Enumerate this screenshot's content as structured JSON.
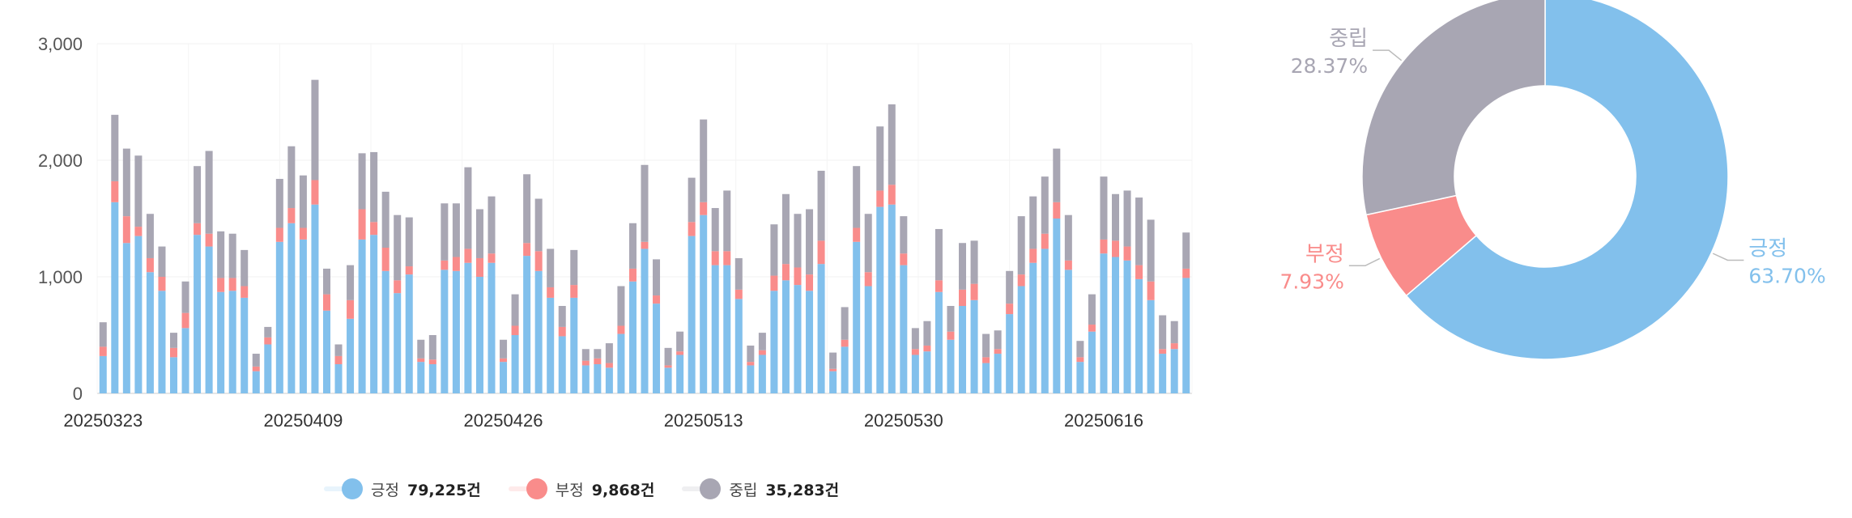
{
  "chart_data": [
    {
      "type": "bar",
      "stacked": true,
      "x_ticks": [
        "20250323",
        "20250409",
        "20250426",
        "20250513",
        "20250530",
        "20250616"
      ],
      "y_ticks": [
        "0",
        "1,000",
        "2,000",
        "3,000"
      ],
      "ylim": [
        0,
        3000
      ],
      "grid": true,
      "series": [
        {
          "name": "긍정",
          "color": "#82c0ec",
          "values": [
            320,
            1640,
            1290,
            1350,
            1040,
            880,
            310,
            560,
            1360,
            1260,
            870,
            880,
            820,
            190,
            420,
            1300,
            1460,
            1320,
            1620,
            710,
            250,
            640,
            1320,
            1360,
            1050,
            860,
            1020,
            270,
            250,
            1060,
            1050,
            1120,
            1000,
            1120,
            270,
            500,
            1180,
            1050,
            820,
            490,
            820,
            240,
            250,
            220,
            510,
            960,
            1240,
            770,
            220,
            330,
            1350,
            1530,
            1100,
            1100,
            810,
            240,
            330,
            880,
            970,
            930,
            880,
            1110,
            190,
            400,
            1300,
            920,
            1600,
            1620,
            1100,
            330,
            360,
            870,
            460,
            750,
            800,
            260,
            340,
            680,
            920,
            1120,
            1240,
            1500,
            1060,
            270,
            530,
            1200,
            1170,
            1140,
            980,
            800,
            340,
            380,
            990
          ]
        },
        {
          "name": "부정",
          "color": "#f98c8b",
          "values": [
            80,
            180,
            230,
            80,
            120,
            120,
            80,
            130,
            100,
            110,
            120,
            110,
            100,
            40,
            60,
            120,
            130,
            100,
            210,
            140,
            70,
            160,
            260,
            110,
            200,
            110,
            70,
            30,
            40,
            80,
            120,
            120,
            160,
            80,
            30,
            80,
            110,
            170,
            90,
            80,
            110,
            40,
            50,
            40,
            70,
            110,
            60,
            70,
            20,
            30,
            120,
            110,
            120,
            120,
            80,
            30,
            40,
            130,
            140,
            150,
            140,
            200,
            20,
            60,
            120,
            120,
            140,
            170,
            100,
            50,
            50,
            100,
            70,
            140,
            140,
            50,
            40,
            90,
            100,
            120,
            130,
            140,
            80,
            40,
            60,
            120,
            140,
            120,
            120,
            160,
            40,
            50,
            80
          ]
        },
        {
          "name": "중립",
          "color": "#a8a6b3",
          "values": [
            210,
            570,
            580,
            610,
            380,
            260,
            130,
            270,
            490,
            710,
            400,
            380,
            310,
            110,
            90,
            420,
            530,
            450,
            860,
            220,
            100,
            300,
            480,
            600,
            480,
            560,
            420,
            160,
            210,
            490,
            460,
            700,
            420,
            490,
            160,
            270,
            590,
            450,
            330,
            180,
            300,
            100,
            80,
            170,
            340,
            390,
            660,
            310,
            150,
            170,
            380,
            710,
            370,
            520,
            270,
            140,
            150,
            440,
            600,
            460,
            560,
            600,
            140,
            280,
            530,
            500,
            550,
            690,
            320,
            180,
            210,
            440,
            220,
            400,
            370,
            200,
            160,
            280,
            500,
            450,
            490,
            460,
            390,
            140,
            260,
            540,
            400,
            480,
            580,
            530,
            290,
            190,
            310
          ]
        }
      ],
      "legend": {
        "position": "bottom",
        "totals": [
          "79,225건",
          "9,868건",
          "35,283건"
        ]
      }
    },
    {
      "type": "pie",
      "donut": true,
      "slices": [
        {
          "name": "긍정",
          "value": 63.7,
          "label": "63.70%",
          "color": "#82c0ec"
        },
        {
          "name": "부정",
          "value": 7.93,
          "label": "7.93%",
          "color": "#f98c8b"
        },
        {
          "name": "중립",
          "value": 28.37,
          "label": "28.37%",
          "color": "#a8a6b3"
        }
      ]
    }
  ]
}
